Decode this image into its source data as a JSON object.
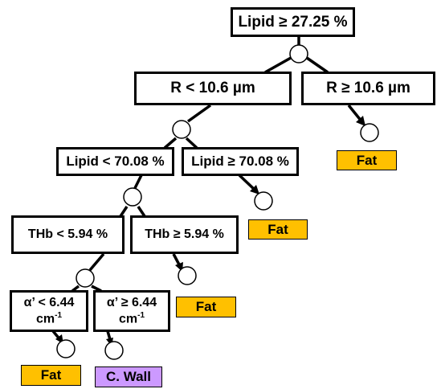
{
  "colors": {
    "fat": "#ffc000",
    "cell_wall": "#cc99ff",
    "line": "#000000",
    "box_bg": "#ffffff"
  },
  "nodes": {
    "root": "Lipid ≥ 27.25 %",
    "r_lt": "R < 10.6 µm",
    "r_ge": "R ≥ 10.6 µm",
    "lipid_lt": "Lipid < 70.08 %",
    "lipid_ge": "Lipid ≥ 70.08 %",
    "thb_lt": "THb < 5.94 %",
    "thb_ge": "THb  ≥ 5.94 %",
    "alpha_lt_line1": "α’ < 6.44",
    "alpha_lt_line2": "cm",
    "alpha_ge_line1": "α’ ≥ 6.44",
    "alpha_ge_line2": "cm",
    "unit_exp": "-1"
  },
  "leaves": {
    "fat_r_ge": "Fat",
    "fat_lipid_ge": "Fat",
    "fat_thb_ge": "Fat",
    "fat_alpha_lt": "Fat",
    "cwall_alpha_ge": "C. Wall"
  }
}
